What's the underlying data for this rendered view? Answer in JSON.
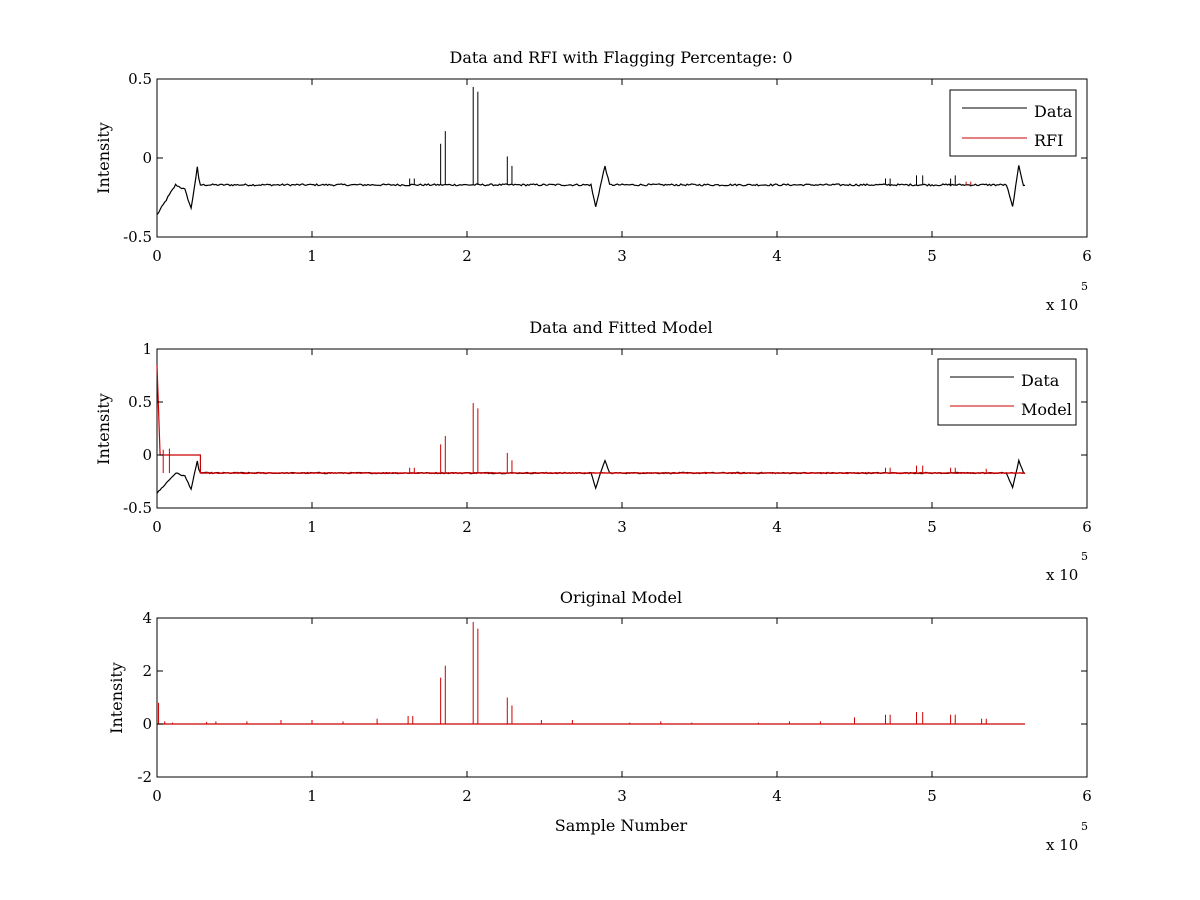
{
  "chart_data": [
    {
      "type": "line",
      "title": "Data and RFI with Flagging Percentage: 0",
      "xlabel": "",
      "ylabel": "Intensity",
      "xlim": [
        0,
        600000
      ],
      "ylim": [
        -0.5,
        0.5
      ],
      "xticks": [
        0,
        1,
        2,
        3,
        4,
        5,
        6
      ],
      "yticks": [
        "-0.5",
        "0",
        "0.5"
      ],
      "x_multiplier": "x 10",
      "x_multiplier_exp": "5",
      "grid": false,
      "legend_position": "top-right",
      "series": [
        {
          "name": "Data",
          "color": "#000000",
          "baseline": -0.17,
          "noise": 0.006,
          "dips": [
            [
              0,
              -0.36
            ],
            [
              12000,
              -0.17
            ],
            [
              18000,
              -0.2
            ],
            [
              22000,
              -0.32
            ],
            [
              26000,
              -0.06
            ],
            [
              27500,
              -0.17
            ],
            [
              280000,
              -0.17
            ],
            [
              283000,
              -0.31
            ],
            [
              289000,
              -0.05
            ],
            [
              292000,
              -0.17
            ],
            [
              548000,
              -0.17
            ],
            [
              552000,
              -0.31
            ],
            [
              556000,
              -0.05
            ],
            [
              559000,
              -0.17
            ]
          ],
          "spikes": [
            [
              183000,
              0.09
            ],
            [
              186000,
              0.17
            ],
            [
              204000,
              0.45
            ],
            [
              207000,
              0.42
            ],
            [
              226000,
              0.01
            ],
            [
              229000,
              -0.05
            ],
            [
              163000,
              -0.13
            ],
            [
              166000,
              -0.13
            ],
            [
              470000,
              -0.13
            ],
            [
              473000,
              -0.13
            ],
            [
              490000,
              -0.11
            ],
            [
              494000,
              -0.11
            ],
            [
              512000,
              -0.13
            ],
            [
              515000,
              -0.11
            ]
          ],
          "x_end": 560000
        },
        {
          "name": "RFI",
          "color": "#cc0000",
          "spikes": [
            [
              522000,
              -0.15
            ],
            [
              525000,
              -0.15
            ]
          ]
        }
      ]
    },
    {
      "type": "line",
      "title": "Data and Fitted Model",
      "xlabel": "",
      "ylabel": "Intensity",
      "xlim": [
        0,
        600000
      ],
      "ylim": [
        -0.5,
        1
      ],
      "xticks": [
        0,
        1,
        2,
        3,
        4,
        5,
        6
      ],
      "yticks": [
        "-0.5",
        "0",
        "0.5",
        "1"
      ],
      "x_multiplier": "x 10",
      "x_multiplier_exp": "5",
      "grid": false,
      "legend_position": "top-right",
      "series": [
        {
          "name": "Data",
          "color": "#000000",
          "baseline": -0.17,
          "noise": 0.006,
          "dips": [
            [
              0,
              -0.36
            ],
            [
              12000,
              -0.17
            ],
            [
              18000,
              -0.2
            ],
            [
              22000,
              -0.32
            ],
            [
              26000,
              -0.06
            ],
            [
              27500,
              -0.17
            ],
            [
              280000,
              -0.17
            ],
            [
              283000,
              -0.31
            ],
            [
              289000,
              -0.05
            ],
            [
              292000,
              -0.17
            ],
            [
              548000,
              -0.17
            ],
            [
              552000,
              -0.31
            ],
            [
              556000,
              -0.05
            ],
            [
              559000,
              -0.17
            ]
          ],
          "x_end": 560000
        },
        {
          "name": "Model",
          "color": "#cc0000",
          "baseline": -0.17,
          "segments": [
            [
              0,
              0.85
            ],
            [
              2000,
              0.0
            ],
            [
              28000,
              0.0
            ],
            [
              28001,
              -0.17
            ],
            [
              560000,
              -0.17
            ]
          ],
          "spikes": [
            [
              4000,
              0.05
            ],
            [
              8000,
              0.06
            ],
            [
              183000,
              0.1
            ],
            [
              186000,
              0.18
            ],
            [
              204000,
              0.49
            ],
            [
              207000,
              0.44
            ],
            [
              226000,
              0.02
            ],
            [
              229000,
              -0.05
            ],
            [
              163000,
              -0.12
            ],
            [
              166000,
              -0.12
            ],
            [
              470000,
              -0.12
            ],
            [
              473000,
              -0.12
            ],
            [
              490000,
              -0.1
            ],
            [
              494000,
              -0.1
            ],
            [
              512000,
              -0.12
            ],
            [
              515000,
              -0.12
            ],
            [
              535000,
              -0.13
            ]
          ],
          "x_end": 560000
        }
      ]
    },
    {
      "type": "line",
      "title": "Original Model",
      "xlabel": "Sample Number",
      "ylabel": "Intensity",
      "xlim": [
        0,
        600000
      ],
      "ylim": [
        -2,
        4
      ],
      "xticks": [
        0,
        1,
        2,
        3,
        4,
        5,
        6
      ],
      "yticks": [
        "-2",
        "0",
        "2",
        "4"
      ],
      "x_multiplier": "x 10",
      "x_multiplier_exp": "5",
      "grid": false,
      "series": [
        {
          "name": "",
          "color": "#cc0000",
          "baseline": 0,
          "spikes": [
            [
              1000,
              0.8
            ],
            [
              5000,
              0.1
            ],
            [
              10000,
              0.05
            ],
            [
              32000,
              0.08
            ],
            [
              38000,
              0.1
            ],
            [
              58000,
              0.1
            ],
            [
              80000,
              0.15
            ],
            [
              100000,
              0.15
            ],
            [
              120000,
              0.1
            ],
            [
              142000,
              0.2
            ],
            [
              162000,
              0.3
            ],
            [
              165000,
              0.3
            ],
            [
              183000,
              1.75
            ],
            [
              186000,
              2.2
            ],
            [
              204000,
              3.85
            ],
            [
              207000,
              3.6
            ],
            [
              226000,
              1.0
            ],
            [
              229000,
              0.7
            ],
            [
              248000,
              0.15
            ],
            [
              268000,
              0.15
            ],
            [
              305000,
              0.05
            ],
            [
              325000,
              0.1
            ],
            [
              345000,
              0.05
            ],
            [
              388000,
              0.05
            ],
            [
              408000,
              0.1
            ],
            [
              428000,
              0.1
            ],
            [
              450000,
              0.25
            ],
            [
              470000,
              0.35
            ],
            [
              473000,
              0.35
            ],
            [
              490000,
              0.45
            ],
            [
              494000,
              0.45
            ],
            [
              512000,
              0.35
            ],
            [
              515000,
              0.35
            ],
            [
              532000,
              0.2
            ],
            [
              535000,
              0.2
            ]
          ],
          "x_end": 560000
        }
      ]
    }
  ]
}
